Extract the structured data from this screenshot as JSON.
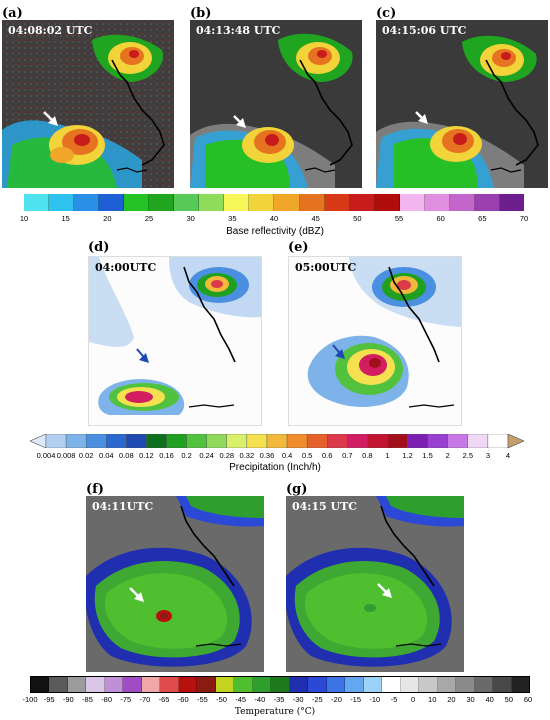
{
  "panels": {
    "a": {
      "label": "(a)",
      "time": "04:08:02 UTC"
    },
    "b": {
      "label": "(b)",
      "time": "04:13:48 UTC"
    },
    "c": {
      "label": "(c)",
      "time": "04:15:06 UTC"
    },
    "d": {
      "label": "(d)",
      "time": "04:00UTC"
    },
    "e": {
      "label": "(e)",
      "time": "05:00UTC"
    },
    "f": {
      "label": "(f)",
      "time": "04:11UTC"
    },
    "g": {
      "label": "(g)",
      "time": "04:15 UTC"
    }
  },
  "reflectivity_bar": {
    "title": "Base reflectivity (dBZ)",
    "ticks": [
      "10",
      "15",
      "20",
      "25",
      "30",
      "35",
      "40",
      "45",
      "50",
      "55",
      "60",
      "65",
      "70"
    ],
    "colors": [
      "#4fe3f0",
      "#2fc2ee",
      "#2a8fe6",
      "#1f5fd6",
      "#22c322",
      "#1fa51f",
      "#57c957",
      "#8fdb5a",
      "#f7f75a",
      "#f2d33a",
      "#f0a628",
      "#e5731f",
      "#d83a17",
      "#c81c1c",
      "#b10d0d",
      "#f2b5f0",
      "#e08ee0",
      "#c465cc",
      "#9b3fb0",
      "#6e1f8f"
    ]
  },
  "precip_bar": {
    "title": "Precipitation (Inch/h)",
    "ticks": [
      "0.004",
      "0.008",
      "0.02",
      "0.04",
      "0.08",
      "0.12",
      "0.16",
      "0.2",
      "0.24",
      "0.28",
      "0.32",
      "0.36",
      "0.4",
      "0.5",
      "0.6",
      "0.7",
      "0.8",
      "1",
      "1.2",
      "1.5",
      "2",
      "2.5",
      "3",
      "4"
    ],
    "colors": [
      "#dbe8f7",
      "#b4d0f0",
      "#7eb3ea",
      "#4a8fe0",
      "#2a68d0",
      "#1d49b0",
      "#0e6f1f",
      "#20a020",
      "#52c23e",
      "#8fd85a",
      "#d8f06a",
      "#f5e050",
      "#f2b93a",
      "#ee8c2e",
      "#e6602a",
      "#dc3a4a",
      "#d21d62",
      "#c21432",
      "#a00f1a",
      "#7a1fb0",
      "#9840cf",
      "#c778e6",
      "#f0d7f5",
      "#ffffff",
      "#c79f6c"
    ]
  },
  "temp_bar": {
    "title": "Temperature (°C)",
    "ticks": [
      "-100",
      "-95",
      "-90",
      "-85",
      "-80",
      "-75",
      "-70",
      "-65",
      "-60",
      "-55",
      "-50",
      "-45",
      "-40",
      "-35",
      "-30",
      "-25",
      "-20",
      "-15",
      "-10",
      "-5",
      "0",
      "10",
      "20",
      "30",
      "40",
      "50",
      "60"
    ],
    "colors": [
      "#111111",
      "#5a5a5a",
      "#9b9b9b",
      "#d9c6e6",
      "#c08fd8",
      "#a04cc4",
      "#f0a7a7",
      "#e04b4b",
      "#b80f0f",
      "#8a1b12",
      "#c2d41f",
      "#4fbf2f",
      "#2e9e2e",
      "#1c7a1c",
      "#1f2fb0",
      "#2c49d6",
      "#3c74e6",
      "#63a7f0",
      "#9bd2f6",
      "#ffffff",
      "#e6e6e6",
      "#c8c8c8",
      "#a8a8a8",
      "#8a8a8a",
      "#6a6a6a",
      "#484848",
      "#222222"
    ]
  }
}
